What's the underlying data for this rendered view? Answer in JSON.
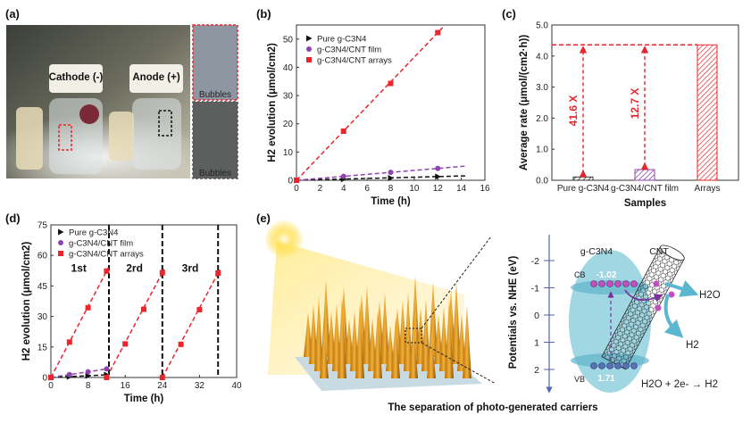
{
  "panels": {
    "a": {
      "label": "(a)",
      "cathode": "Cathode (-)",
      "anode": "Anode (+)",
      "inset_top": "Bubbles",
      "inset_bottom": "Bubbles"
    },
    "b": {
      "label": "(b)"
    },
    "c": {
      "label": "(c)"
    },
    "d": {
      "label": "(d)"
    },
    "e": {
      "label": "(e)",
      "caption": "The separation of photo-generated carriers",
      "axis_label": "Potentials vs. NHE (eV)",
      "axis_ticks": [
        "-2",
        "-1",
        "0",
        "1",
        "2"
      ],
      "material1": "g-C3N4",
      "material2": "CNT",
      "cb": "CB",
      "vb": "VB",
      "cb_value": "-1.02",
      "vb_value": "1.71",
      "h2o": "H2O",
      "h2": "H2",
      "reaction": "H2O + 2e- → H2"
    }
  },
  "colors": {
    "pure": "#111111",
    "film": "#8e44ad",
    "arrays": "#e8262b",
    "band": "#7cc7d6"
  },
  "chart_data": [
    {
      "type": "scatter",
      "panel": "b",
      "xlabel": "Time (h)",
      "ylabel": "H2 evolution (μmol/cm2)",
      "xlim": [
        0,
        16
      ],
      "ylim": [
        0,
        55
      ],
      "xticks": [
        "0",
        "2",
        "4",
        "6",
        "8",
        "10",
        "12",
        "14",
        "16"
      ],
      "yticks": [
        "0",
        "10",
        "20",
        "30",
        "40",
        "50"
      ],
      "legend": "top-left",
      "fit_lines": "dashed",
      "series": [
        {
          "name": "Pure g-C3N4",
          "marker": "triangle-right",
          "x": [
            0,
            4,
            8,
            12
          ],
          "y": [
            0,
            0.4,
            0.8,
            1.3
          ],
          "fit_end": 14.5
        },
        {
          "name": "g-C3N4/CNT film",
          "marker": "circle",
          "x": [
            0,
            4,
            8,
            12
          ],
          "y": [
            0,
            1.4,
            2.8,
            4.2
          ],
          "fit_end": 14.5
        },
        {
          "name": "g-C3N4/CNT arrays",
          "marker": "square",
          "x": [
            0,
            4,
            8,
            12
          ],
          "y": [
            0,
            17.4,
            34.3,
            52.3
          ],
          "fit_end": 12.5
        }
      ]
    },
    {
      "type": "bar",
      "panel": "c",
      "xlabel": "Samples",
      "ylabel": "Average rate (μmol/(cm2·h))",
      "ylim": [
        0,
        5
      ],
      "yticks": [
        "0.0",
        "1.0",
        "2.0",
        "3.0",
        "4.0",
        "5.0"
      ],
      "categories": [
        "Pure g-C3N4",
        "g-C3N4/CNT film",
        "Arrays"
      ],
      "values": [
        0.105,
        0.343,
        4.36
      ],
      "annotations": [
        "41.6 X",
        "12.7 X"
      ]
    },
    {
      "type": "scatter",
      "panel": "d",
      "xlabel": "Time (h)",
      "ylabel": "H2 evolution (μmol/cm2)",
      "xlim": [
        0,
        40
      ],
      "ylim": [
        0,
        75
      ],
      "xticks": [
        "0",
        "8",
        "16",
        "24",
        "32",
        "40"
      ],
      "yticks": [
        "0",
        "15",
        "30",
        "45",
        "60",
        "75"
      ],
      "legend": "top-left",
      "cycle_labels": [
        "1st",
        "2rd",
        "3rd"
      ],
      "cycle_boundaries": [
        12.5,
        24,
        36
      ],
      "series": [
        {
          "name": "Pure g-C3N4",
          "marker": "triangle-right",
          "segments": [
            {
              "x": [
                0,
                4,
                8,
                12
              ],
              "y": [
                0,
                0.4,
                0.8,
                1.3
              ]
            }
          ]
        },
        {
          "name": "g-C3N4/CNT film",
          "marker": "circle",
          "segments": [
            {
              "x": [
                0,
                4,
                8,
                12
              ],
              "y": [
                0,
                1.4,
                2.8,
                4.2
              ]
            }
          ]
        },
        {
          "name": "g-C3N4/CNT arrays",
          "marker": "square",
          "segments": [
            {
              "x": [
                0,
                4,
                8,
                12
              ],
              "y": [
                0,
                17.4,
                34.3,
                52.3
              ]
            },
            {
              "x": [
                12,
                16,
                20,
                24
              ],
              "y": [
                0,
                16.5,
                33.5,
                51.5
              ]
            },
            {
              "x": [
                24,
                28,
                32,
                36
              ],
              "y": [
                0,
                16.3,
                33.3,
                51.3
              ]
            }
          ]
        }
      ]
    }
  ]
}
